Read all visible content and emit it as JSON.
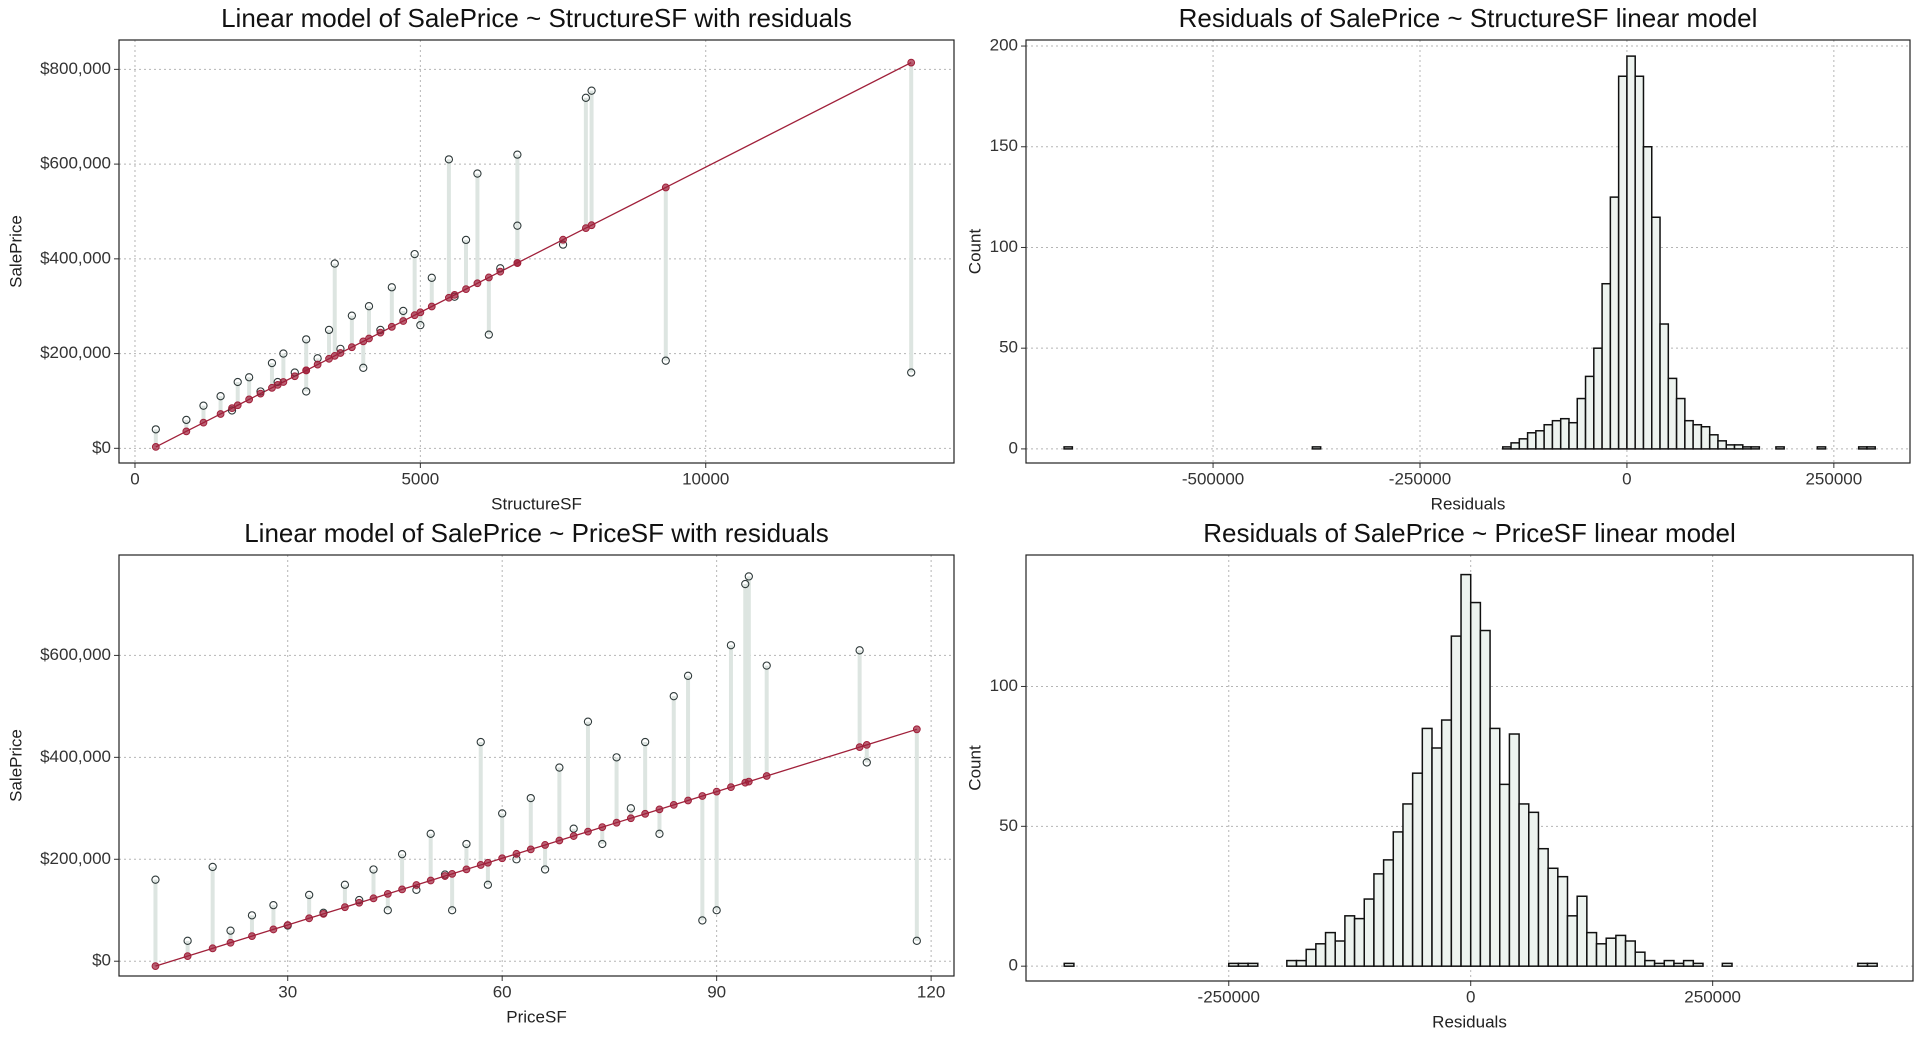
{
  "chart_data": [
    {
      "type": "scatter",
      "title": "Linear model of SalePrice ~ StructureSF with residuals",
      "x_label": "StructureSF",
      "y_label": "SalePrice",
      "xlim": [
        -280,
        14350
      ],
      "ylim": [
        -31000,
        862000
      ],
      "xticks": [
        0,
        5000,
        10000
      ],
      "yticks": [
        {
          "value": 0,
          "label": "$0"
        },
        {
          "value": 200000,
          "label": "$200,000"
        },
        {
          "value": 400000,
          "label": "$400,000"
        },
        {
          "value": 600000,
          "label": "$600,000"
        },
        {
          "value": 800000,
          "label": "$800,000"
        }
      ],
      "grid": true,
      "point_color": "#2f3a3a",
      "fit_color": "#a0203a",
      "residual_color": "#dde5e1",
      "x": [
        365,
        900,
        1200,
        1500,
        1700,
        1800,
        2000,
        2200,
        2400,
        2500,
        2600,
        2800,
        3000,
        3000,
        3200,
        3400,
        3500,
        3600,
        3800,
        4000,
        4100,
        4300,
        4500,
        4700,
        4900,
        5000,
        5200,
        5500,
        5600,
        5800,
        6000,
        6200,
        6400,
        6700,
        6700,
        7500,
        7900,
        8000,
        9300,
        13600
      ],
      "values": [
        40000,
        60000,
        90000,
        110000,
        80000,
        140000,
        150000,
        120000,
        180000,
        140000,
        200000,
        160000,
        230000,
        120000,
        190000,
        250000,
        390000,
        210000,
        280000,
        170000,
        300000,
        250000,
        340000,
        290000,
        410000,
        260000,
        360000,
        610000,
        320000,
        440000,
        580000,
        240000,
        380000,
        620000,
        470000,
        430000,
        740000,
        755000,
        185000,
        160000
      ],
      "fitted": [
        3000,
        35800,
        54200,
        72500,
        84800,
        90900,
        103200,
        115500,
        127700,
        133900,
        140000,
        152200,
        164500,
        164500,
        176800,
        189000,
        195200,
        201300,
        213500,
        225800,
        231900,
        244200,
        256500,
        268700,
        281000,
        287100,
        299400,
        317800,
        323900,
        336100,
        348400,
        360700,
        372900,
        391300,
        391300,
        440400,
        464900,
        471000,
        550700,
        814300
      ]
    },
    {
      "type": "histogram",
      "title": "Residuals of SalePrice ~ StructureSF linear model",
      "x_label": "Residuals",
      "y_label": "Count",
      "xlim": [
        -726000,
        342000
      ],
      "ylim": [
        -7,
        203
      ],
      "xticks": [
        -500000,
        -250000,
        0,
        250000
      ],
      "yticks": [
        0,
        50,
        100,
        150,
        200
      ],
      "grid": true,
      "color": "#edf3ef",
      "bins": [
        -680000,
        -670000,
        -380000,
        -370000,
        -150000,
        -140000,
        -130000,
        -120000,
        -110000,
        -100000,
        -90000,
        -80000,
        -70000,
        -60000,
        -50000,
        -40000,
        -30000,
        -20000,
        -10000,
        0,
        10000,
        20000,
        30000,
        40000,
        50000,
        60000,
        70000,
        80000,
        90000,
        100000,
        110000,
        120000,
        130000,
        140000,
        150000,
        160000,
        180000,
        190000,
        230000,
        240000,
        280000,
        290000,
        300000
      ],
      "counts": [
        1,
        0,
        1,
        0,
        1,
        3,
        5,
        8,
        9,
        12,
        14,
        15,
        13,
        25,
        36,
        50,
        82,
        125,
        185,
        195,
        185,
        150,
        115,
        62,
        35,
        25,
        14,
        12,
        11,
        7,
        4,
        2,
        2,
        1,
        1,
        0,
        1,
        0,
        1,
        0,
        1,
        1
      ]
    },
    {
      "type": "scatter",
      "title": "Linear model of SalePrice ~ PriceSF with residuals",
      "x_label": "PriceSF",
      "y_label": "SalePrice",
      "xlim": [
        6.4,
        123.2
      ],
      "ylim": [
        -29000,
        797000
      ],
      "xticks": [
        30,
        60,
        90,
        120
      ],
      "yticks": [
        {
          "value": 0,
          "label": "$0"
        },
        {
          "value": 200000,
          "label": "$200,000"
        },
        {
          "value": 400000,
          "label": "$400,000"
        },
        {
          "value": 600000,
          "label": "$600,000"
        }
      ],
      "grid": true,
      "point_color": "#2f3a3a",
      "fit_color": "#a0203a",
      "residual_color": "#dde5e1",
      "x": [
        11.5,
        16,
        19.5,
        22,
        25,
        28,
        30,
        33,
        35,
        38,
        40,
        42,
        44,
        46,
        48,
        50,
        52,
        53,
        55,
        57,
        58,
        60,
        62,
        64,
        66,
        68,
        70,
        72,
        74,
        76,
        78,
        80,
        82,
        84,
        86,
        88,
        90,
        92,
        94,
        94.5,
        97,
        110,
        111,
        118
      ],
      "values": [
        160000,
        40000,
        185000,
        60000,
        90000,
        110000,
        70000,
        130000,
        95000,
        150000,
        120000,
        180000,
        100000,
        210000,
        140000,
        250000,
        170000,
        100000,
        230000,
        430000,
        150000,
        290000,
        200000,
        320000,
        180000,
        380000,
        260000,
        470000,
        230000,
        400000,
        300000,
        430000,
        250000,
        520000,
        560000,
        80000,
        100000,
        620000,
        740000,
        755000,
        580000,
        610000,
        390000,
        40000
      ],
      "fitted": [
        -9600,
        10000,
        25300,
        36200,
        49300,
        62400,
        71100,
        84200,
        92900,
        106000,
        114700,
        123400,
        132200,
        140900,
        149600,
        158300,
        167100,
        171400,
        180200,
        188900,
        193200,
        202000,
        210700,
        219400,
        228100,
        236900,
        245600,
        254300,
        263000,
        271800,
        280500,
        289200,
        297900,
        306700,
        315400,
        324100,
        332800,
        341500,
        350300,
        352400,
        363400,
        420100,
        424400,
        455000
      ]
    },
    {
      "type": "histogram",
      "title": "Residuals of SalePrice ~ PriceSF linear model",
      "x_label": "Residuals",
      "y_label": "Count",
      "xlim": [
        -459500,
        457000
      ],
      "ylim": [
        -5.3,
        147
      ],
      "xticks": [
        -250000,
        0,
        250000
      ],
      "yticks": [
        0,
        50,
        100
      ],
      "grid": true,
      "color": "#edf3ef",
      "bins": [
        -420000,
        -410000,
        -250000,
        -240000,
        -230000,
        -220000,
        -190000,
        -180000,
        -170000,
        -160000,
        -150000,
        -140000,
        -130000,
        -120000,
        -110000,
        -100000,
        -90000,
        -80000,
        -70000,
        -60000,
        -50000,
        -40000,
        -30000,
        -20000,
        -10000,
        0,
        10000,
        20000,
        30000,
        40000,
        50000,
        60000,
        70000,
        80000,
        90000,
        100000,
        110000,
        120000,
        130000,
        140000,
        150000,
        160000,
        170000,
        180000,
        190000,
        200000,
        210000,
        220000,
        230000,
        240000,
        260000,
        270000,
        400000,
        410000,
        420000
      ],
      "counts": [
        1,
        0,
        1,
        1,
        1,
        0,
        2,
        2,
        6,
        8,
        12,
        9,
        18,
        17,
        24,
        33,
        38,
        48,
        58,
        69,
        85,
        78,
        88,
        118,
        140,
        130,
        120,
        85,
        65,
        83,
        58,
        55,
        42,
        35,
        32,
        18,
        25,
        12,
        8,
        10,
        11,
        9,
        5,
        2,
        1,
        2,
        1,
        2,
        1,
        0,
        1,
        0,
        1,
        1
      ]
    }
  ]
}
